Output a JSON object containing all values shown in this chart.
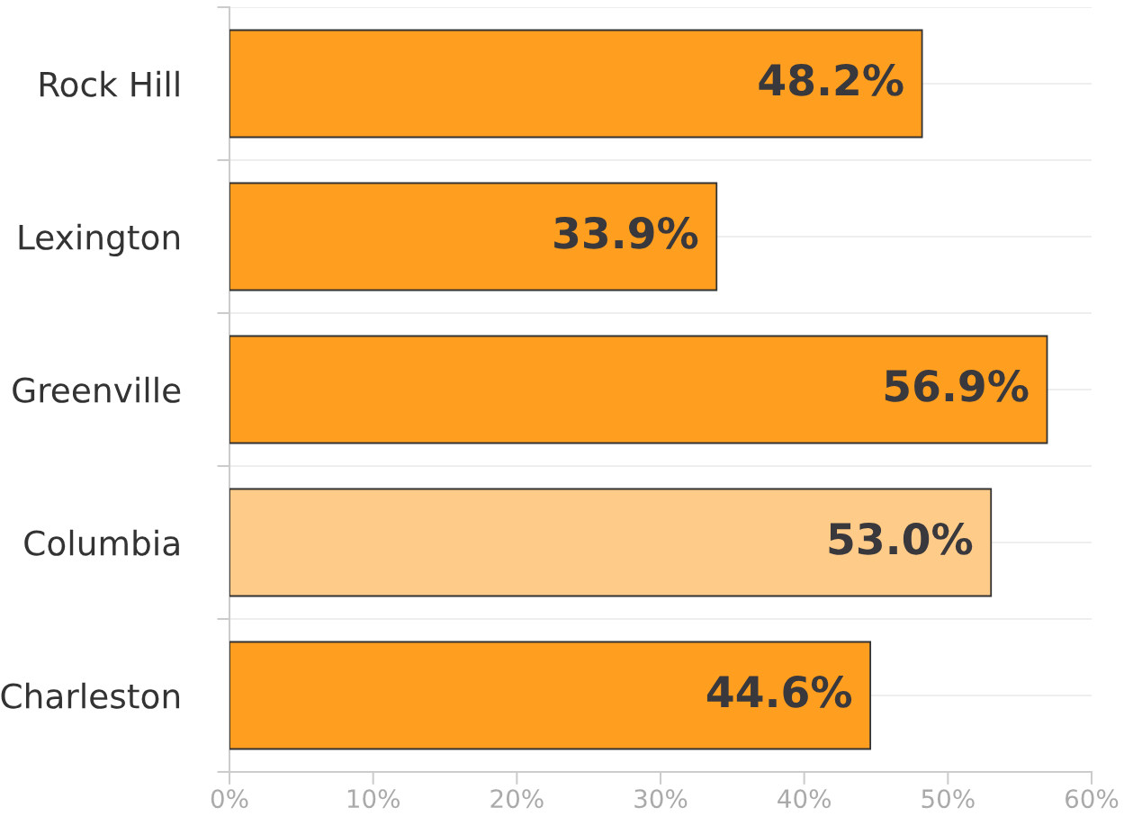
{
  "chart_data": {
    "type": "bar",
    "orientation": "horizontal",
    "categories": [
      "Rock Hill",
      "Lexington",
      "Greenville",
      "Columbia",
      "Charleston"
    ],
    "values": [
      48.2,
      33.9,
      56.9,
      53.0,
      44.6
    ],
    "colors": [
      "#ff9e1f",
      "#ff9e1f",
      "#ff9e1f",
      "#ffcb88",
      "#ff9e1f"
    ],
    "value_labels": [
      "48.2%",
      "33.9%",
      "56.9%",
      "53.0%",
      "44.6%"
    ],
    "xlim": [
      0,
      60
    ],
    "xticks": [
      {
        "value": 0,
        "label": "0%"
      },
      {
        "value": 10,
        "label": "10%"
      },
      {
        "value": 20,
        "label": "20%"
      },
      {
        "value": 30,
        "label": "30%"
      },
      {
        "value": 40,
        "label": "40%"
      },
      {
        "value": 50,
        "label": "50%"
      },
      {
        "value": 60,
        "label": "60%"
      }
    ],
    "grid": "y",
    "legend": false
  }
}
